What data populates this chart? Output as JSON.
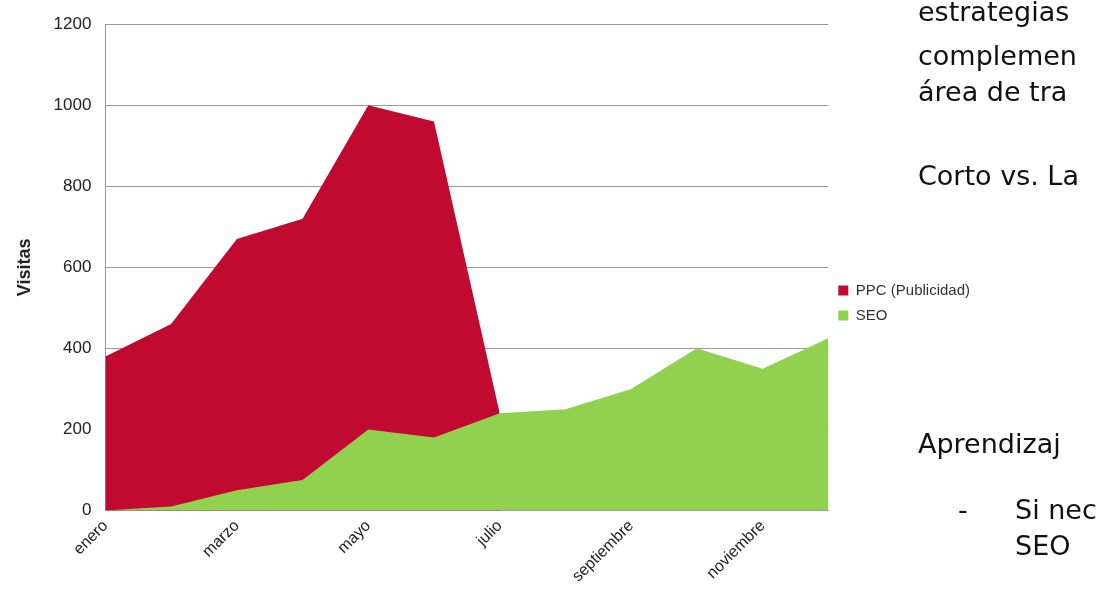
{
  "chart_data": {
    "type": "area",
    "ylabel": "Visitas",
    "categories": [
      "enero",
      null,
      "marzo",
      null,
      "mayo",
      null,
      "julio",
      null,
      "septiembre",
      null,
      "noviembre",
      null
    ],
    "series": [
      {
        "name": "PPC (Publicidad)",
        "color": "#c00a30",
        "values": [
          380,
          460,
          670,
          720,
          1000,
          960,
          240,
          null,
          null,
          null,
          null,
          null
        ]
      },
      {
        "name": "SEO",
        "color": "#92d050",
        "values": [
          0,
          10,
          50,
          75,
          200,
          180,
          240,
          250,
          300,
          400,
          350,
          425
        ]
      }
    ],
    "ylim": [
      0,
      1200
    ],
    "yticks": [
      0,
      200,
      400,
      600,
      800,
      1000,
      1200
    ],
    "grid": "y",
    "legend": "right",
    "annotations": [
      "estrategias",
      "complemen",
      "área de tra",
      "Corto vs. La",
      "Aprendizaj",
      "-",
      "Si nec",
      "SEO"
    ]
  }
}
